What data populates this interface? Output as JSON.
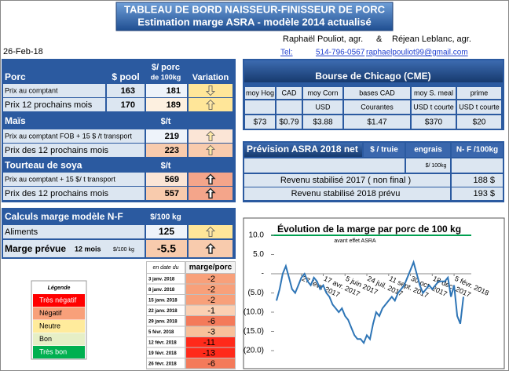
{
  "header": {
    "title": "TABLEAU DE BORD NAISSEUR-FINISSEUR DE PORC",
    "subtitle": "Estimation marge ASRA - modèle 2014 actualisé",
    "date": "26-Feb-18",
    "authors": [
      "Raphaël Pouliot, agr.",
      "&",
      "Réjean Leblanc, agr."
    ],
    "contact": [
      "Tel:",
      "514-796-0567",
      "raphaelpouliot99@gmail.com"
    ]
  },
  "porc": {
    "headers": [
      "Porc",
      "$ pool",
      "$/ porc",
      "de 100kg",
      "Variation"
    ],
    "rows": [
      [
        "Prix au comptant",
        163,
        181
      ],
      [
        "Prix 12 prochains mois",
        170,
        189
      ]
    ]
  },
  "mais": {
    "headers": [
      "Maïs",
      "$/t"
    ],
    "rows": [
      [
        "Prix au comptant FOB + 15 $ /t transport",
        219
      ],
      [
        "Prix des 12 prochains mois",
        223
      ]
    ]
  },
  "tourteau": {
    "headers": [
      "Tourteau de soya",
      "$/t"
    ],
    "rows": [
      [
        "Prix au comptant + 15 $/ t  transport",
        569
      ],
      [
        "Prix des 12 prochains mois",
        557
      ]
    ]
  },
  "calculs": {
    "headers": [
      "Calculs marge  modèle N-F",
      "$/100 kg"
    ],
    "aliments": [
      "Aliments",
      125
    ],
    "marge": {
      "label": "Marge prévue",
      "note": "12 mois",
      "unit": "$/100 kg",
      "value": -5.5
    }
  },
  "legend": {
    "title": "Légende",
    "items": [
      "Très négatif",
      "Négatif",
      "Neutre",
      "Bon",
      "Très bon"
    ]
  },
  "history": {
    "headers": [
      "en date du",
      "marge/porc"
    ],
    "rows": [
      [
        "3 janv. 2018",
        -2
      ],
      [
        "8 janv. 2018",
        -2
      ],
      [
        "15 janv. 2018",
        -2
      ],
      [
        "22 janv. 2018",
        -1
      ],
      [
        "29 janv. 2018",
        -6
      ],
      [
        "5 févr. 2018",
        -3
      ],
      [
        "12 févr. 2018",
        -11
      ],
      [
        "19 févr. 2018",
        -13
      ],
      [
        "26 févr. 2018",
        -6
      ]
    ]
  },
  "chicago": {
    "title": "Bourse de Chicago (CME)",
    "columns": [
      "moy Hog",
      "CAD",
      "moy Corn",
      "bases CAD",
      "moy S. meal",
      "prime"
    ],
    "units": [
      null,
      null,
      "USD",
      "Courantes",
      "USD t courte",
      "USD t courte"
    ],
    "values": [
      "$73",
      "$0.79",
      "$3.88",
      "$1.47",
      "$370",
      "$20"
    ]
  },
  "prevision": {
    "title": "Prévision ASRA 2018 net",
    "columns": [
      "$ / truie",
      "engrais",
      "N- F /100kg"
    ],
    "unit": "$/ 100kg",
    "rows": [
      [
        "Revenu stabilisé 2017 ( non final )",
        "188 $"
      ],
      [
        "Revenu stabilisé 2018 prévu",
        "193 $"
      ]
    ]
  },
  "chart_data": {
    "type": "line",
    "title": "Évolution de la marge par porc de 100 kg",
    "subtitle": "avant effet ASRA",
    "categories": [
      null,
      null,
      null,
      null,
      null,
      null,
      null,
      null,
      "27 févr. 2017",
      null,
      null,
      null,
      null,
      null,
      null,
      "17 avr. 2017",
      null,
      null,
      null,
      null,
      null,
      null,
      "5 juin 2017",
      null,
      null,
      null,
      null,
      null,
      null,
      "24 juil. 2017",
      null,
      null,
      null,
      null,
      null,
      null,
      "11 sept. 2017",
      null,
      null,
      null,
      null,
      null,
      null,
      "30 oct. 2017",
      null,
      null,
      null,
      null,
      null,
      null,
      "18 déc. 2017",
      null,
      null,
      null,
      null,
      null,
      null,
      "5 févr. 2018",
      null,
      null,
      null
    ],
    "series": [
      {
        "name": "marge",
        "color": "#2e75b6",
        "values": [
          -7,
          -4,
          0,
          2,
          -1,
          -4,
          -5,
          -3,
          -1,
          0,
          -2,
          -3,
          -1,
          -2,
          -4,
          -3,
          -5,
          -6,
          -8,
          -9,
          -10,
          -9,
          -11,
          -12,
          -14,
          -16,
          -17,
          -17,
          -18,
          -16,
          -17,
          -13,
          -10,
          -11,
          -9,
          -8,
          -7,
          -6,
          -7,
          -5,
          -4,
          -3,
          -1,
          1,
          3,
          0,
          -3,
          -5,
          -4,
          -3,
          -4,
          -3,
          -2,
          -2,
          -2,
          -1,
          -6,
          -3,
          -11,
          -13,
          -6
        ]
      }
    ],
    "ylim": [
      -20,
      10
    ],
    "yticks": [
      {
        "value": 10,
        "label": "10.0"
      },
      {
        "value": 5,
        "label": "5.0"
      },
      {
        "value": 0,
        "label": "-"
      },
      {
        "value": -5,
        "label": "(5.0)"
      },
      {
        "value": -10,
        "label": "(10.0)"
      },
      {
        "value": -15,
        "label": "(15.0)"
      },
      {
        "value": -20,
        "label": "(20.0)"
      }
    ]
  }
}
